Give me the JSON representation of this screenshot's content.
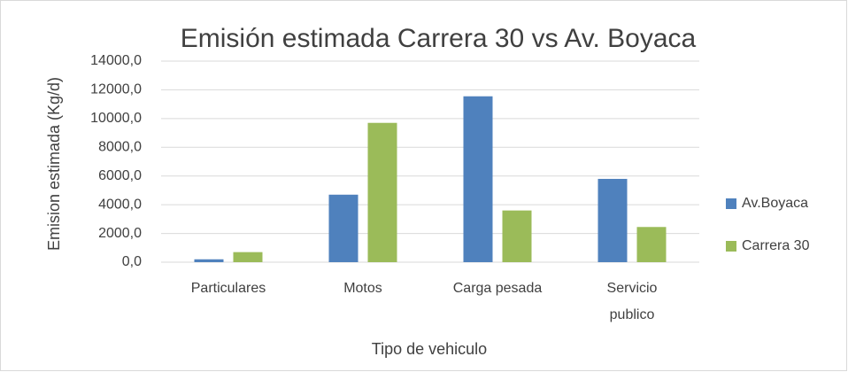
{
  "chart_data": {
    "type": "bar",
    "title": "Emisión estimada Carrera 30 vs Av. Boyaca",
    "x_label": "Tipo de vehiculo",
    "y_label": "Emision estimada (Kg/d)",
    "categories": [
      "Particulares",
      "Motos",
      "Carga pesada",
      "Servicio publico"
    ],
    "series": [
      {
        "name": "Av.Boyaca",
        "color": "#4f81bd",
        "values": [
          200,
          4700,
          11550,
          5800
        ]
      },
      {
        "name": "Carrera 30",
        "color": "#9bbb59",
        "values": [
          700,
          9700,
          3600,
          2450
        ]
      }
    ],
    "ylim": [
      0,
      14000
    ],
    "yticks": [
      {
        "value": 0,
        "label": "0,0"
      },
      {
        "value": 2000,
        "label": "2000,0"
      },
      {
        "value": 4000,
        "label": "4000,0"
      },
      {
        "value": 6000,
        "label": "6000,0"
      },
      {
        "value": 8000,
        "label": "8000,0"
      },
      {
        "value": 10000,
        "label": "10000,0"
      },
      {
        "value": 12000,
        "label": "12000,0"
      },
      {
        "value": 14000,
        "label": "14000,0"
      }
    ],
    "grid": true,
    "legend": "right"
  }
}
